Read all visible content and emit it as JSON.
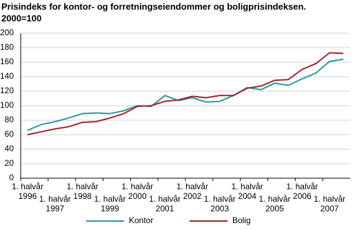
{
  "chart_data": {
    "type": "line",
    "title": "Prisindeks for kontor- og forretningseiendommer og boligprisindeksen.",
    "subtitle": "2000=100",
    "categories": [
      "1. halvår\n1996",
      null,
      "1. halvår\n1997",
      null,
      "1. halvår\n1998",
      null,
      "1. halvår\n1999",
      null,
      "1. halvår\n2000",
      null,
      "1. halvår\n2001",
      null,
      "1. halvår\n2002",
      null,
      "1. halvår\n2003",
      null,
      "1. halvår\n2004",
      null,
      "1. halvår\n2005",
      null,
      "1. halvår\n2006",
      null,
      "1. halvår\n2007",
      null
    ],
    "series": [
      {
        "name": "Kontor",
        "color": "#2a9a9a",
        "values": [
          66,
          74,
          78,
          83,
          89,
          90,
          89,
          93,
          100,
          99,
          114,
          107,
          111,
          105,
          106,
          114,
          125,
          122,
          131,
          128,
          137,
          145,
          161,
          164
        ]
      },
      {
        "name": "Bolig",
        "color": "#a0242a",
        "values": [
          60,
          64,
          68,
          71,
          77,
          78,
          83,
          89,
          99,
          100,
          106,
          108,
          113,
          111,
          114,
          114,
          124,
          127,
          135,
          136,
          150,
          158,
          173,
          172
        ]
      }
    ],
    "ylim": [
      0,
      200
    ],
    "yticks": [
      0,
      20,
      40,
      60,
      80,
      100,
      120,
      140,
      160,
      180,
      200
    ],
    "grid": true
  }
}
